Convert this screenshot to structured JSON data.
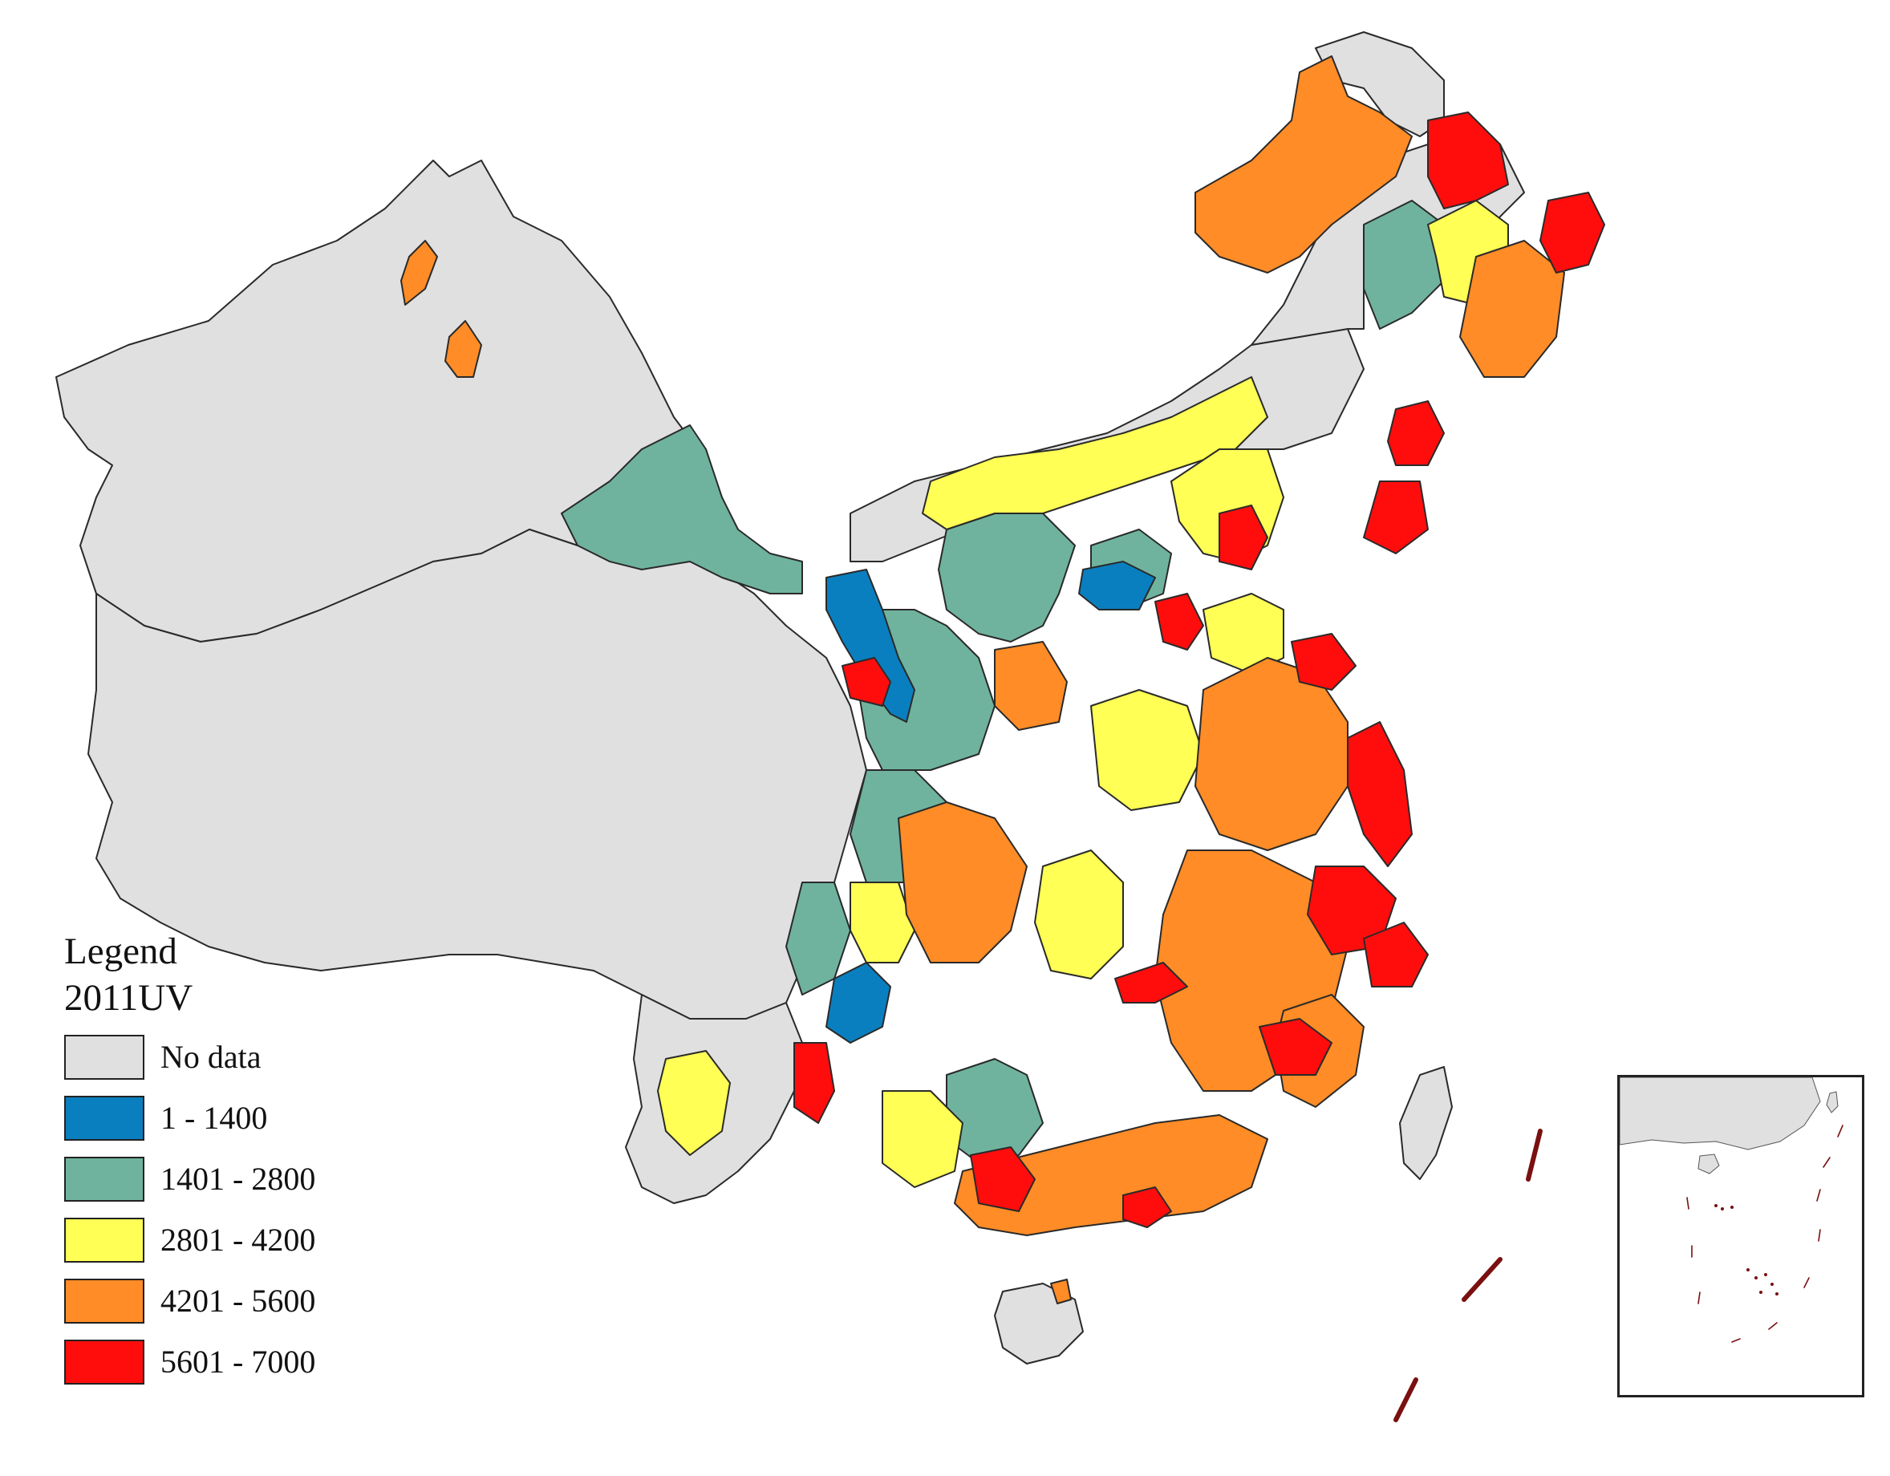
{
  "legend": {
    "title": "Legend",
    "subtitle": "2011UV",
    "classes": [
      {
        "label": "No data",
        "color": "#e0e0e0"
      },
      {
        "label": "1 - 1400",
        "color": "#0a7fbf"
      },
      {
        "label": "1401 - 2800",
        "color": "#6fb39e"
      },
      {
        "label": "2801 - 4200",
        "color": "#ffff55"
      },
      {
        "label": "4201 - 5600",
        "color": "#ff8c26"
      },
      {
        "label": "5601 - 7000",
        "color": "#ff0d0d"
      }
    ]
  },
  "colors": {
    "no_data": "#e0e0e0",
    "class1": "#0a7fbf",
    "class2": "#6fb39e",
    "class3": "#ffff55",
    "class4": "#ff8c26",
    "class5": "#ff0d0d",
    "border": "#2a2a2a",
    "dash_line": "#7a1010"
  },
  "icons": {
    "inset": "south-china-sea-inset-map",
    "map": "china-prefecture-choropleth"
  }
}
